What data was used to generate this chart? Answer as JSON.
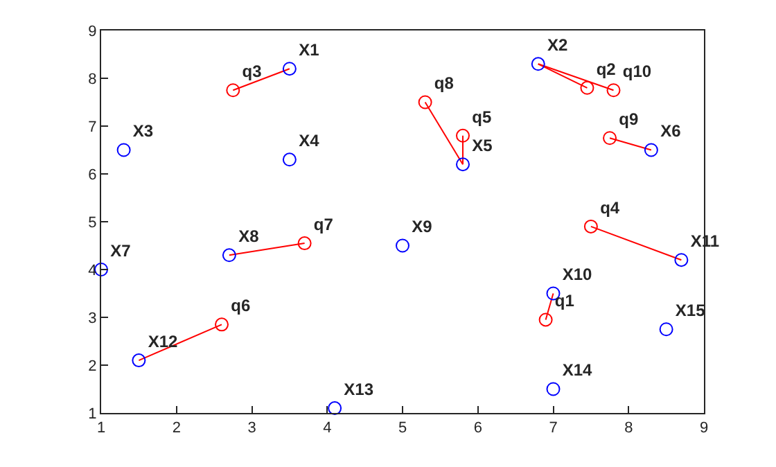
{
  "chart_data": {
    "type": "scatter",
    "xlim": [
      1,
      9
    ],
    "ylim": [
      1,
      9
    ],
    "xticks": [
      1,
      2,
      3,
      4,
      5,
      6,
      7,
      8,
      9
    ],
    "yticks": [
      1,
      2,
      3,
      4,
      5,
      6,
      7,
      8,
      9
    ],
    "grid": false,
    "marker": "circle",
    "series": [
      {
        "type": "line",
        "color": "#ff0000",
        "marker": "none",
        "x": [
          2.75,
          3.5
        ],
        "values": [
          7.75,
          8.2
        ]
      },
      {
        "type": "line",
        "color": "#ff0000",
        "marker": "none",
        "x": [
          7.45,
          6.8
        ],
        "values": [
          7.8,
          8.3
        ]
      },
      {
        "type": "line",
        "color": "#ff0000",
        "marker": "none",
        "x": [
          7.8,
          6.8
        ],
        "values": [
          7.75,
          8.3
        ]
      },
      {
        "type": "line",
        "color": "#ff0000",
        "marker": "none",
        "x": [
          5.3,
          5.8
        ],
        "values": [
          7.5,
          6.2
        ]
      },
      {
        "type": "line",
        "color": "#ff0000",
        "marker": "none",
        "x": [
          5.8,
          5.8
        ],
        "values": [
          6.8,
          6.2
        ]
      },
      {
        "type": "line",
        "color": "#ff0000",
        "marker": "none",
        "x": [
          7.75,
          8.3
        ],
        "values": [
          6.75,
          6.5
        ]
      },
      {
        "type": "line",
        "color": "#ff0000",
        "marker": "none",
        "x": [
          3.7,
          2.7
        ],
        "values": [
          4.55,
          4.3
        ]
      },
      {
        "type": "line",
        "color": "#ff0000",
        "marker": "none",
        "x": [
          7.5,
          8.7
        ],
        "values": [
          4.9,
          4.2
        ]
      },
      {
        "type": "line",
        "color": "#ff0000",
        "marker": "none",
        "x": [
          6.9,
          7.0
        ],
        "values": [
          2.95,
          3.5
        ]
      },
      {
        "type": "line",
        "color": "#ff0000",
        "marker": "none",
        "x": [
          2.6,
          1.5
        ],
        "values": [
          2.85,
          2.1
        ]
      },
      {
        "color": "#0000ff",
        "x": [
          3.5,
          6.8,
          1.3,
          3.5,
          5.8,
          8.3,
          1.0,
          2.7,
          5.0,
          7.0,
          8.7,
          1.5,
          4.1,
          7.0,
          8.5
        ],
        "values": [
          8.2,
          8.3,
          6.5,
          6.3,
          6.2,
          6.5,
          4.0,
          4.3,
          4.5,
          3.5,
          4.2,
          2.1,
          1.1,
          1.5,
          2.75
        ],
        "value_labels": [
          "X1",
          "X2",
          "X3",
          "X4",
          "X5",
          "X6",
          "X7",
          "X8",
          "X9",
          "X10",
          "X11",
          "X12",
          "X13",
          "X14",
          "X15"
        ]
      },
      {
        "color": "#ff0000",
        "x": [
          6.9,
          7.45,
          2.75,
          7.5,
          5.8,
          2.6,
          3.7,
          5.3,
          7.75,
          7.8
        ],
        "values": [
          2.95,
          7.8,
          7.75,
          4.9,
          6.8,
          2.85,
          4.55,
          7.5,
          6.75,
          7.75
        ],
        "value_labels": [
          "q1",
          "q2",
          "q3",
          "q4",
          "q5",
          "q6",
          "q7",
          "q8",
          "q9",
          "q10"
        ]
      }
    ]
  }
}
